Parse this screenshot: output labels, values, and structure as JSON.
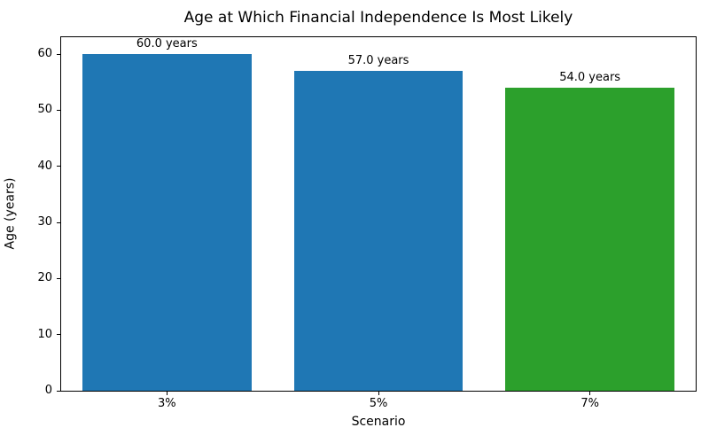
{
  "chart_data": {
    "type": "bar",
    "title": "Age at Which Financial Independence Is Most Likely",
    "xlabel": "Scenario",
    "ylabel": "Age (years)",
    "categories": [
      "3%",
      "5%",
      "7%"
    ],
    "values": [
      60.0,
      57.0,
      54.0
    ],
    "bar_labels": [
      "60.0 years",
      "57.0 years",
      "54.0 years"
    ],
    "bar_colors": [
      "#1f77b4",
      "#1f77b4",
      "#2ca02c"
    ],
    "ylim": [
      0,
      63
    ],
    "yticks": [
      0,
      10,
      20,
      30,
      40,
      50,
      60
    ],
    "grid": false,
    "legend_position": "none",
    "axis_color": "#000000",
    "background_color": "#ffffff"
  }
}
